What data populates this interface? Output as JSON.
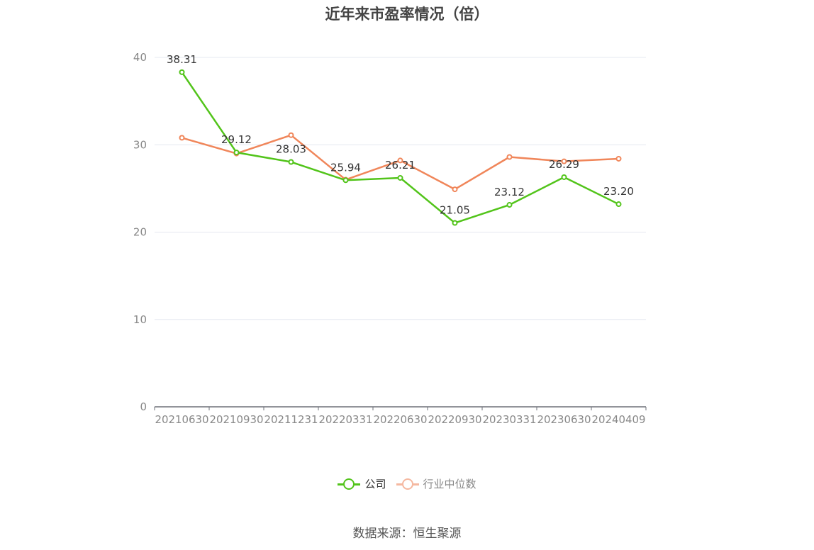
{
  "title": "近年来市盈率情况（倍）",
  "source_text": "数据来源：恒生聚源",
  "chart_data": {
    "type": "line",
    "title": "近年来市盈率情况（倍）",
    "categories": [
      "20210630",
      "20210930",
      "20211231",
      "20220331",
      "20220630",
      "20220930",
      "20230331",
      "20230630",
      "20240409"
    ],
    "y_ticks": [
      "0",
      "10",
      "20",
      "30",
      "40"
    ],
    "ylim": [
      0,
      40
    ],
    "grid": true,
    "legend_position": "bottom",
    "series": [
      {
        "name": "公司",
        "color": "#52c41a",
        "values": [
          38.31,
          29.12,
          28.03,
          25.94,
          26.21,
          21.05,
          23.12,
          26.29,
          23.2
        ],
        "labels": [
          "38.31",
          "29.12",
          "28.03",
          "25.94",
          "26.21",
          "21.05",
          "23.12",
          "26.29",
          "23.20"
        ]
      },
      {
        "name": "行业中位数",
        "color": "#f0865a",
        "values": [
          30.8,
          29.0,
          31.1,
          26.0,
          28.2,
          24.9,
          28.6,
          28.1,
          28.4
        ]
      }
    ]
  }
}
